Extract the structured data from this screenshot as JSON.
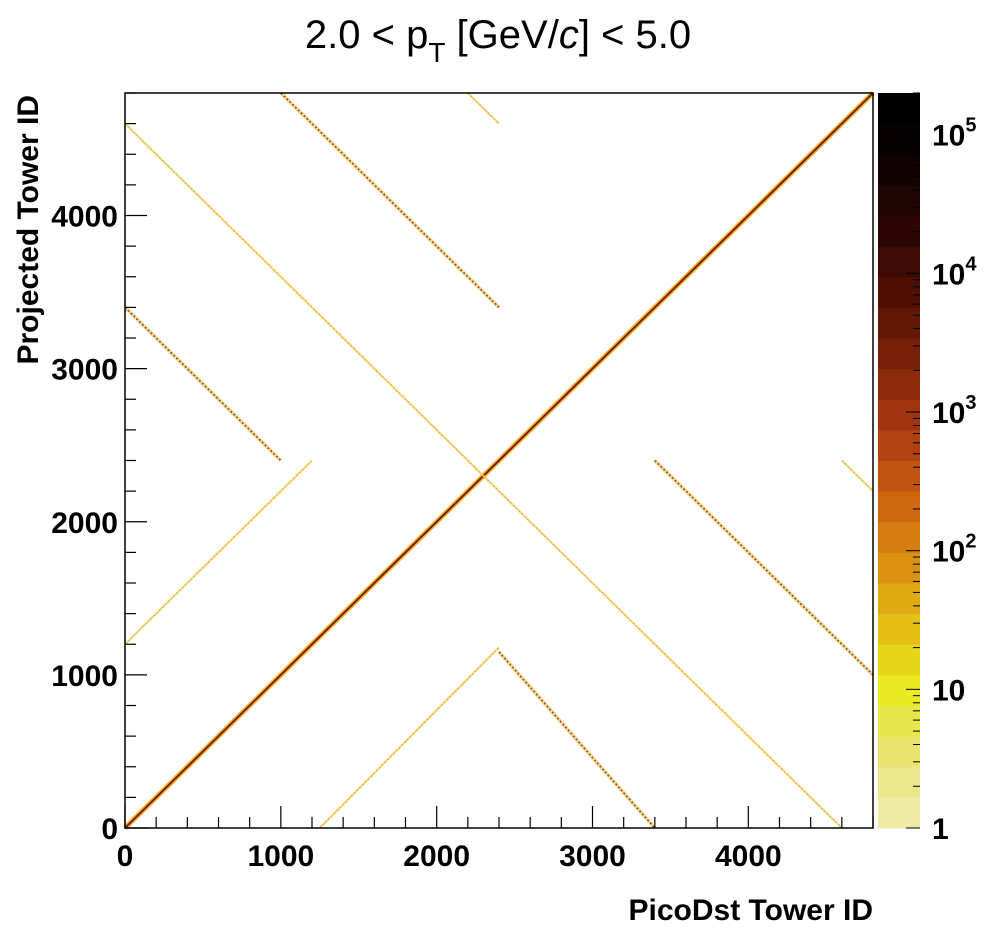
{
  "chart_data": {
    "type": "heatmap",
    "title_parts": {
      "prefix": "2.0 < p",
      "sub": "T",
      "middle": " [GeV/",
      "italic": "c",
      "suffix": "] < 5.0"
    },
    "xlabel": "PicoDst Tower ID",
    "ylabel": "Projected Tower ID",
    "xlim": [
      0,
      4800
    ],
    "ylim": [
      0,
      4800
    ],
    "x_ticks": [
      0,
      1000,
      2000,
      3000,
      4000
    ],
    "y_ticks": [
      0,
      1000,
      2000,
      3000,
      4000
    ],
    "x_tick_labels": [
      "0",
      "1000",
      "2000",
      "3000",
      "4000"
    ],
    "y_tick_labels": [
      "0",
      "1000",
      "2000",
      "3000",
      "4000"
    ],
    "colorbar": {
      "scale": "log",
      "range": [
        1,
        200000
      ],
      "tick_labels": [
        {
          "base": "1",
          "exp": "",
          "value": 1
        },
        {
          "base": "10",
          "exp": "",
          "value": 10
        },
        {
          "base": "10",
          "exp": "2",
          "value": 100
        },
        {
          "base": "10",
          "exp": "3",
          "value": 1000
        },
        {
          "base": "10",
          "exp": "4",
          "value": 10000
        },
        {
          "base": "10",
          "exp": "5",
          "value": 100000
        }
      ],
      "colors": [
        "#efeaa4",
        "#ebe68c",
        "#e8e46e",
        "#e7e74c",
        "#e9ea22",
        "#e6d719",
        "#e3c015",
        "#e0aa13",
        "#dc9210",
        "#d67c10",
        "#cd6710",
        "#c15410",
        "#b24310",
        "#a03510",
        "#8c2a0c",
        "#772008",
        "#621805",
        "#4f1003",
        "#3c0a02",
        "#2c0603",
        "#1e0403",
        "#120203",
        "#050202",
        "#000000"
      ]
    },
    "bands": [
      {
        "name": "main-diagonal",
        "from": [
          0,
          0
        ],
        "to": [
          4800,
          4800
        ],
        "intensity": "high"
      },
      {
        "name": "anti-diagonal-long",
        "from": [
          0,
          4600
        ],
        "to": [
          4600,
          0
        ],
        "intensity": "low"
      },
      {
        "name": "lower-left-rising",
        "from": [
          0,
          1200
        ],
        "to": [
          1200,
          2400
        ],
        "intensity": "low"
      },
      {
        "name": "lower-right-rising",
        "from": [
          1250,
          0
        ],
        "to": [
          2400,
          1180
        ],
        "intensity": "low"
      },
      {
        "name": "upper-left-falling",
        "from": [
          0,
          3400
        ],
        "to": [
          1000,
          2400
        ],
        "intensity": "mid"
      },
      {
        "name": "upper-middle-falling",
        "from": [
          1000,
          4800
        ],
        "to": [
          2400,
          3400
        ],
        "intensity": "mid"
      },
      {
        "name": "lower-middle-falling",
        "from": [
          2400,
          1150
        ],
        "to": [
          3400,
          0
        ],
        "intensity": "mid"
      },
      {
        "name": "right-falling",
        "from": [
          3400,
          2400
        ],
        "to": [
          4800,
          1000
        ],
        "intensity": "mid"
      },
      {
        "name": "top-short",
        "from": [
          2200,
          4800
        ],
        "to": [
          2400,
          4600
        ],
        "intensity": "low"
      },
      {
        "name": "right-short",
        "from": [
          4600,
          2400
        ],
        "to": [
          4800,
          2200
        ],
        "intensity": "low"
      }
    ]
  }
}
